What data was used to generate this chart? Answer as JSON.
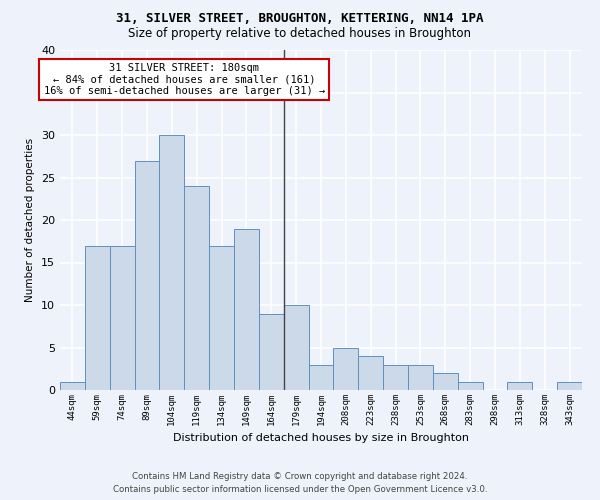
{
  "title": "31, SILVER STREET, BROUGHTON, KETTERING, NN14 1PA",
  "subtitle": "Size of property relative to detached houses in Broughton",
  "xlabel": "Distribution of detached houses by size in Broughton",
  "ylabel": "Number of detached properties",
  "categories": [
    "44sqm",
    "59sqm",
    "74sqm",
    "89sqm",
    "104sqm",
    "119sqm",
    "134sqm",
    "149sqm",
    "164sqm",
    "179sqm",
    "194sqm",
    "208sqm",
    "223sqm",
    "238sqm",
    "253sqm",
    "268sqm",
    "283sqm",
    "298sqm",
    "313sqm",
    "328sqm",
    "343sqm"
  ],
  "values": [
    1,
    17,
    17,
    27,
    30,
    24,
    17,
    19,
    9,
    10,
    3,
    5,
    4,
    3,
    3,
    2,
    1,
    0,
    1,
    0,
    1
  ],
  "bar_color": "#ccd9e8",
  "bar_edge_color": "#6090c0",
  "vline_x_index": 9,
  "annotation_title": "31 SILVER STREET: 180sqm",
  "annotation_line1": "← 84% of detached houses are smaller (161)",
  "annotation_line2": "16% of semi-detached houses are larger (31) →",
  "annotation_box_color": "#ffffff",
  "annotation_box_edge": "#cc0000",
  "ylim": [
    0,
    40
  ],
  "yticks": [
    0,
    5,
    10,
    15,
    20,
    25,
    30,
    35,
    40
  ],
  "background_color": "#eef2fa",
  "grid_color": "#ffffff",
  "footer_line1": "Contains HM Land Registry data © Crown copyright and database right 2024.",
  "footer_line2": "Contains public sector information licensed under the Open Government Licence v3.0."
}
